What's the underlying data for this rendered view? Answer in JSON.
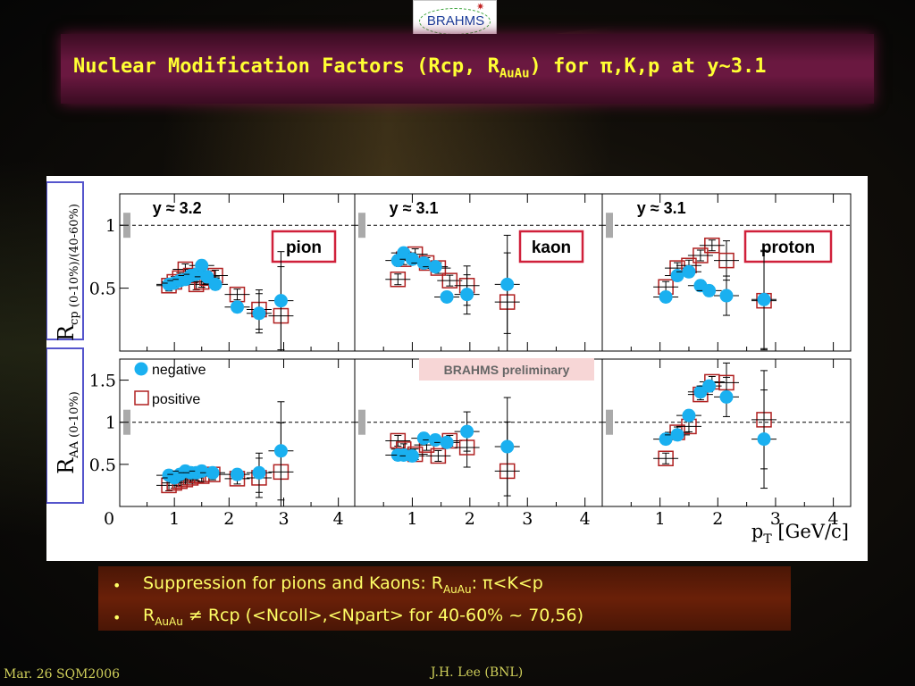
{
  "logo": {
    "text": "BRAHMS"
  },
  "slide": {
    "title_main": "Nuclear Modification Factors (Rcp, R",
    "title_sub": "AuAu",
    "title_tail": ") for π,K,p at y~3.1",
    "notes": [
      {
        "pre": "Suppression for pions and Kaons: R",
        "sub": "AuAu",
        "post": ": π<K<p"
      },
      {
        "pre": "R",
        "sub": "AuAu",
        "post": " ≠ Rcp (<Ncoll>,<Npart> for 40-60% ~ 70,56)"
      }
    ],
    "footer_left": "Mar. 26 SQM2006",
    "footer_center": "J.H. Lee (BNL)"
  },
  "colors": {
    "title": "#ffff33",
    "negative": "#1ab0f0",
    "positive": "#b02020",
    "label_box": "#d0203a",
    "ylabel_box": "#5555cc",
    "prelim_bg": "#f7d6d6"
  },
  "chart_data": {
    "type": "scatter",
    "xlabel": "p_T [GeV/c]",
    "xlim": [
      0,
      4.3
    ],
    "xticks": [
      1,
      2,
      3,
      4
    ],
    "x_tick_labels_outer": [
      "0",
      "1",
      "2",
      "3",
      "4"
    ],
    "legend": {
      "placement": "top-left",
      "entries": [
        "negative",
        "positive"
      ]
    },
    "annotation": "BRAHMS preliminary",
    "rows": [
      {
        "id": "rcp",
        "ylabel": "R",
        "ylabel_sub": "cp (0-10%)/(40-60%)",
        "ylim": [
          0,
          1.25
        ],
        "ref_line": 1,
        "yticks": [
          0.5,
          1
        ],
        "ytick_labels": [
          "0.5",
          "1"
        ]
      },
      {
        "id": "raa",
        "ylabel": "R",
        "ylabel_sub": "AA (0-10%)",
        "ylim": [
          0,
          1.75
        ],
        "ref_line": 1,
        "yticks": [
          0.5,
          1,
          1.5
        ],
        "ytick_labels": [
          "0.5",
          "1",
          "1.5"
        ]
      }
    ],
    "panels": [
      {
        "row": "rcp",
        "col": 0,
        "rapidity": "y ≈ 3.2",
        "species": "pion",
        "negative": [
          [
            0.9,
            0.53
          ],
          [
            1.0,
            0.54
          ],
          [
            1.1,
            0.56
          ],
          [
            1.2,
            0.57
          ],
          [
            1.3,
            0.6
          ],
          [
            1.4,
            0.61
          ],
          [
            1.5,
            0.68
          ],
          [
            1.6,
            0.59
          ],
          [
            1.75,
            0.53
          ],
          [
            2.15,
            0.35
          ],
          [
            2.55,
            0.3
          ],
          [
            2.95,
            0.4
          ]
        ],
        "positive": [
          [
            0.9,
            0.52
          ],
          [
            1.0,
            0.55
          ],
          [
            1.1,
            0.58
          ],
          [
            1.2,
            0.65
          ],
          [
            1.3,
            0.6
          ],
          [
            1.4,
            0.53
          ],
          [
            1.5,
            0.55
          ],
          [
            1.6,
            0.58
          ],
          [
            1.75,
            0.6
          ],
          [
            2.15,
            0.45
          ],
          [
            2.55,
            0.33
          ],
          [
            2.95,
            0.28
          ]
        ]
      },
      {
        "row": "rcp",
        "col": 1,
        "rapidity": "y ≈ 3.1",
        "species": "kaon",
        "negative": [
          [
            0.75,
            0.72
          ],
          [
            0.85,
            0.78
          ],
          [
            1.0,
            0.73
          ],
          [
            1.2,
            0.7
          ],
          [
            1.4,
            0.67
          ],
          [
            1.6,
            0.43
          ],
          [
            1.95,
            0.45
          ],
          [
            2.65,
            0.53
          ]
        ],
        "positive": [
          [
            0.75,
            0.57
          ],
          [
            0.85,
            0.73
          ],
          [
            1.05,
            0.77
          ],
          [
            1.25,
            0.7
          ],
          [
            1.45,
            0.66
          ],
          [
            1.65,
            0.56
          ],
          [
            1.95,
            0.52
          ],
          [
            2.65,
            0.39
          ]
        ]
      },
      {
        "row": "rcp",
        "col": 2,
        "rapidity": "y ≈ 3.1",
        "species": "proton",
        "negative": [
          [
            1.1,
            0.43
          ],
          [
            1.3,
            0.6
          ],
          [
            1.5,
            0.63
          ],
          [
            1.7,
            0.52
          ],
          [
            1.85,
            0.48
          ],
          [
            2.15,
            0.44
          ],
          [
            2.8,
            0.41
          ]
        ],
        "positive": [
          [
            1.1,
            0.51
          ],
          [
            1.3,
            0.66
          ],
          [
            1.5,
            0.68
          ],
          [
            1.7,
            0.76
          ],
          [
            1.9,
            0.84
          ],
          [
            2.15,
            0.72
          ],
          [
            2.8,
            0.4
          ]
        ]
      },
      {
        "row": "raa",
        "col": 0,
        "negative": [
          [
            0.9,
            0.37
          ],
          [
            1.0,
            0.34
          ],
          [
            1.1,
            0.38
          ],
          [
            1.2,
            0.42
          ],
          [
            1.3,
            0.4
          ],
          [
            1.4,
            0.4
          ],
          [
            1.5,
            0.42
          ],
          [
            1.7,
            0.4
          ],
          [
            2.15,
            0.38
          ],
          [
            2.55,
            0.4
          ],
          [
            2.95,
            0.66
          ]
        ],
        "positive": [
          [
            0.9,
            0.25
          ],
          [
            1.0,
            0.28
          ],
          [
            1.1,
            0.3
          ],
          [
            1.2,
            0.32
          ],
          [
            1.3,
            0.34
          ],
          [
            1.4,
            0.37
          ],
          [
            1.5,
            0.36
          ],
          [
            1.7,
            0.38
          ],
          [
            2.15,
            0.33
          ],
          [
            2.55,
            0.34
          ],
          [
            2.95,
            0.41
          ]
        ]
      },
      {
        "row": "raa",
        "col": 1,
        "negative": [
          [
            0.75,
            0.61
          ],
          [
            0.85,
            0.61
          ],
          [
            1.0,
            0.6
          ],
          [
            1.2,
            0.81
          ],
          [
            1.4,
            0.79
          ],
          [
            1.6,
            0.76
          ],
          [
            1.95,
            0.89
          ],
          [
            2.65,
            0.71
          ]
        ],
        "positive": [
          [
            0.75,
            0.78
          ],
          [
            0.85,
            0.68
          ],
          [
            1.05,
            0.62
          ],
          [
            1.25,
            0.73
          ],
          [
            1.45,
            0.6
          ],
          [
            1.65,
            0.78
          ],
          [
            1.95,
            0.7
          ],
          [
            2.65,
            0.42
          ]
        ]
      },
      {
        "row": "raa",
        "col": 2,
        "negative": [
          [
            1.1,
            0.8
          ],
          [
            1.3,
            0.85
          ],
          [
            1.5,
            1.08
          ],
          [
            1.7,
            1.36
          ],
          [
            1.85,
            1.43
          ],
          [
            2.15,
            1.3
          ],
          [
            2.8,
            0.8
          ]
        ],
        "positive": [
          [
            1.1,
            0.57
          ],
          [
            1.3,
            0.88
          ],
          [
            1.5,
            0.95
          ],
          [
            1.7,
            1.33
          ],
          [
            1.9,
            1.48
          ],
          [
            2.15,
            1.47
          ],
          [
            2.8,
            1.03
          ]
        ]
      }
    ]
  }
}
